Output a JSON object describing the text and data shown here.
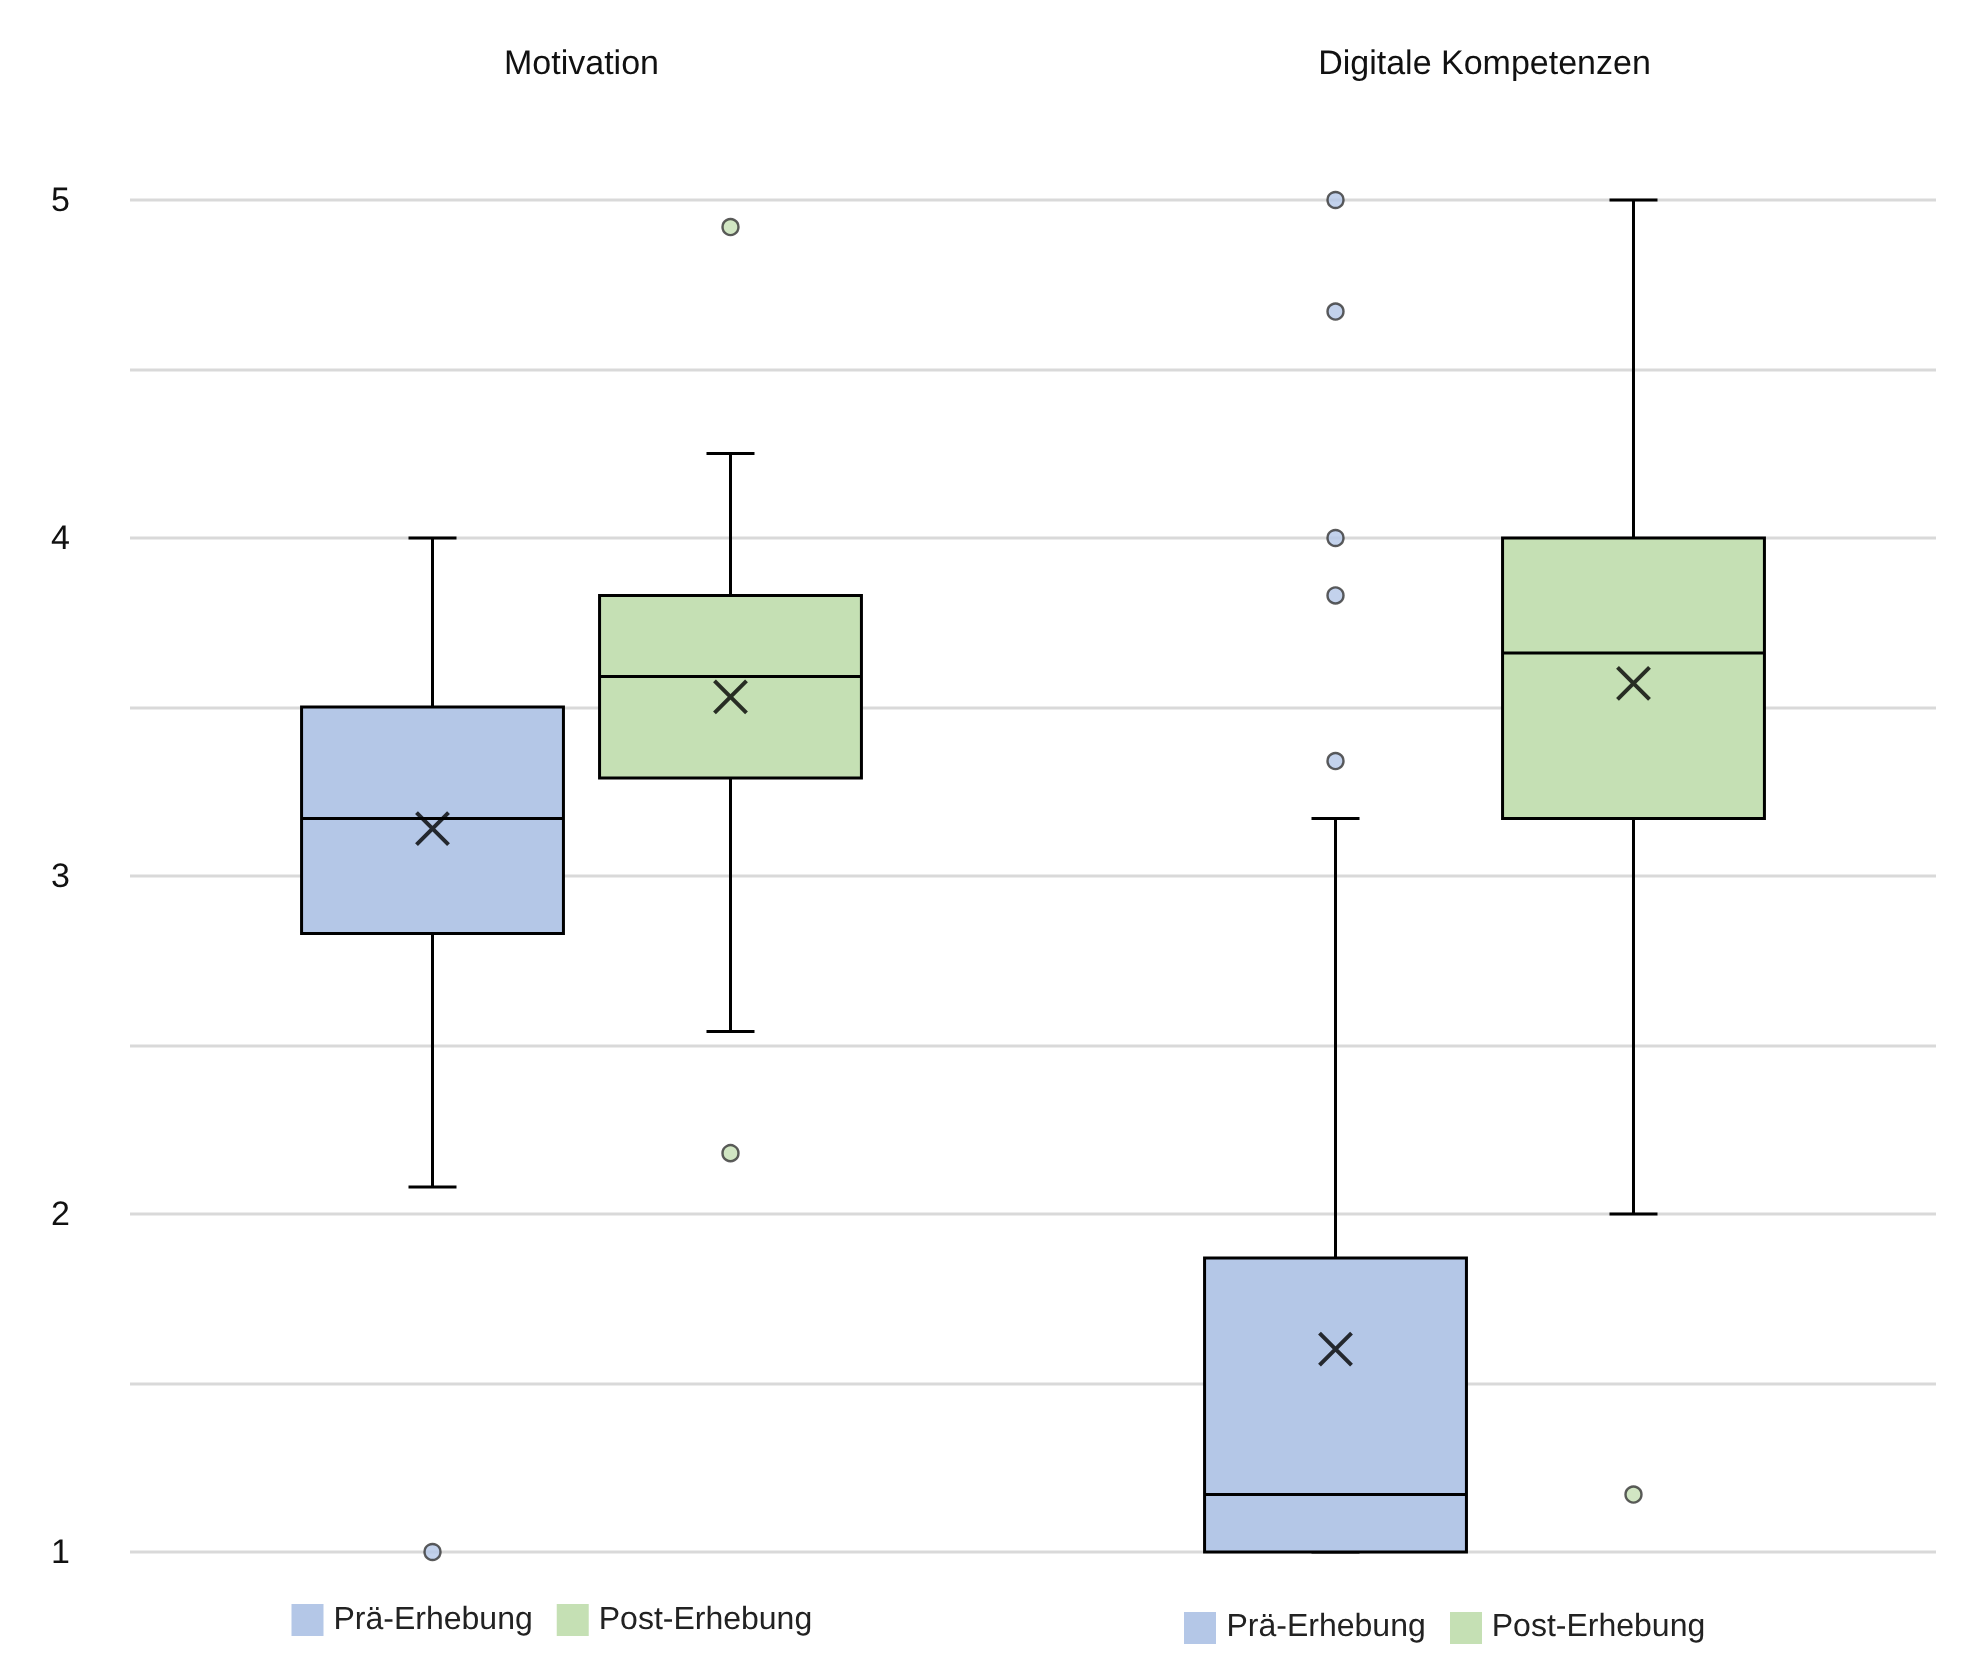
{
  "chart_data": {
    "type": "box",
    "categories": [
      "Motivation",
      "Digitale Kompetenzen"
    ],
    "ylim": [
      1,
      5
    ],
    "yticks": [
      1,
      {
        "value": 1.5,
        "label": null
      },
      2,
      {
        "value": 2.5,
        "label": null
      },
      3,
      {
        "value": 3.5,
        "label": null
      },
      4,
      {
        "value": 4.5,
        "label": null
      },
      5
    ],
    "grid": "y",
    "legend": "bottom",
    "marker": "circle",
    "series": [
      {
        "name": "Prä-Erhebung",
        "color": "#b4c7e7",
        "boxes": [
          {
            "low": 2.08,
            "q1": 2.83,
            "median": 3.17,
            "q3": 3.5,
            "high": 4.0,
            "mean": 3.14,
            "outliers": [
              1.0
            ]
          },
          {
            "low": 1.0,
            "q1": 1.0,
            "median": 1.17,
            "q3": 1.87,
            "high": 3.17,
            "mean": 1.6,
            "outliers": [
              5.0,
              4.67,
              4.0,
              3.83,
              3.34
            ]
          }
        ]
      },
      {
        "name": "Post-Erhebung",
        "color": "#c5e0b4",
        "boxes": [
          {
            "low": 2.54,
            "q1": 3.29,
            "median": 3.59,
            "q3": 3.83,
            "high": 4.25,
            "mean": 3.53,
            "outliers": [
              4.92,
              2.18
            ]
          },
          {
            "low": 2.0,
            "q1": 3.17,
            "median": 3.66,
            "q3": 4.0,
            "high": 5.0,
            "mean": 3.57,
            "outliers": [
              1.17
            ]
          }
        ]
      }
    ]
  }
}
